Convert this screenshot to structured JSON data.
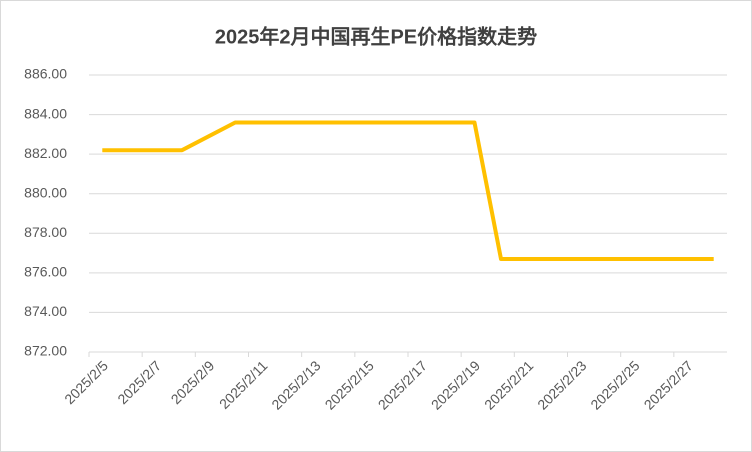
{
  "chart_data": {
    "type": "line",
    "title": "2025年2月中国再生PE价格指数走势",
    "x": [
      "2025/2/5",
      "2025/2/8",
      "2025/2/10",
      "2025/2/19",
      "2025/2/20",
      "2025/2/28"
    ],
    "series": [
      {
        "color": "#ffc000",
        "values": [
          882.2,
          882.2,
          883.6,
          883.6,
          876.7,
          876.7
        ]
      }
    ],
    "xlim": [
      "2025/2/5",
      "2025/2/28"
    ],
    "xticks": [
      "2025/2/5",
      "2025/2/7",
      "2025/2/9",
      "2025/2/11",
      "2025/2/13",
      "2025/2/15",
      "2025/2/17",
      "2025/2/19",
      "2025/2/21",
      "2025/2/23",
      "2025/2/25",
      "2025/2/27"
    ],
    "ylim": [
      872,
      886
    ],
    "yticks": [
      {
        "value": 872,
        "label": "872.00"
      },
      {
        "value": 874,
        "label": "874.00"
      },
      {
        "value": 876,
        "label": "876.00"
      },
      {
        "value": 878,
        "label": "878.00"
      },
      {
        "value": 880,
        "label": "880.00"
      },
      {
        "value": 882,
        "label": "882.00"
      },
      {
        "value": 884,
        "label": "884.00"
      },
      {
        "value": 886,
        "label": "886.00"
      }
    ],
    "grid": true
  }
}
